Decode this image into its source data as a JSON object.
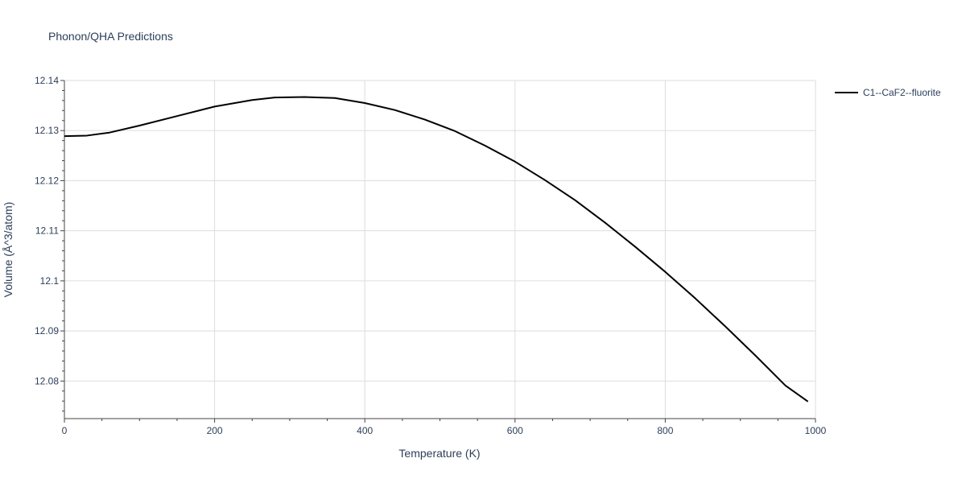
{
  "chart_data": {
    "type": "line",
    "title": "Phonon/QHA Predictions",
    "xlabel": "Temperature (K)",
    "ylabel": "Volume (Å^3/atom)",
    "xlim": [
      0,
      1000
    ],
    "ylim": [
      12.0725,
      12.14
    ],
    "x_ticks": [
      0,
      200,
      400,
      600,
      800,
      1000
    ],
    "x_tick_labels": [
      "0",
      "200",
      "400",
      "600",
      "800",
      "1000"
    ],
    "y_ticks": [
      12.08,
      12.09,
      12.1,
      12.11,
      12.12,
      12.13,
      12.14
    ],
    "y_tick_labels": [
      "12.08",
      "12.09",
      "12.1",
      "12.11",
      "12.12",
      "12.13",
      "12.14"
    ],
    "grid": true,
    "legend_position": "top-right",
    "series": [
      {
        "name": "C1--CaF2--fluorite",
        "color": "#000000",
        "x": [
          0,
          30,
          60,
          100,
          150,
          200,
          250,
          280,
          320,
          360,
          400,
          440,
          480,
          520,
          560,
          600,
          640,
          680,
          720,
          760,
          800,
          840,
          880,
          920,
          960,
          990
        ],
        "y": [
          12.1289,
          12.129,
          12.1296,
          12.131,
          12.1329,
          12.1348,
          12.1361,
          12.1366,
          12.1367,
          12.1365,
          12.1355,
          12.1341,
          12.1322,
          12.1299,
          12.127,
          12.1238,
          12.1201,
          12.1161,
          12.1116,
          12.1068,
          12.1018,
          12.0965,
          12.0909,
          12.0851,
          12.0791,
          12.0759
        ]
      }
    ]
  }
}
